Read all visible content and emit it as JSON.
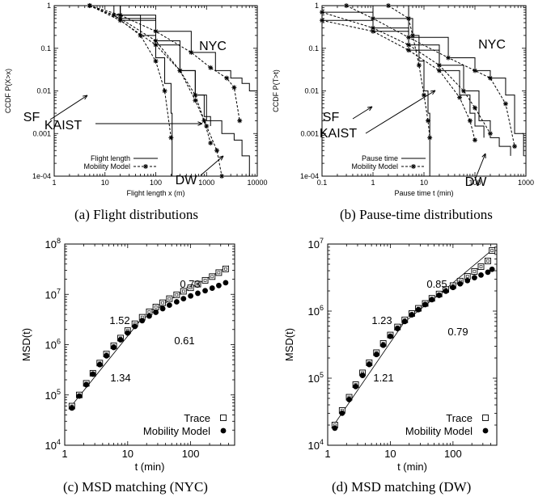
{
  "chart_data": [
    {
      "id": "a",
      "type": "line",
      "caption": "(a)  Flight distributions",
      "xlabel": "Flight length x (m)",
      "ylabel": "CCDF P(X>x)",
      "xscale": "log",
      "yscale": "log",
      "xlim": [
        1,
        10000
      ],
      "ylim": [
        0.0001,
        1
      ],
      "xticks": [
        "1",
        "10",
        "100",
        "1000",
        "10000"
      ],
      "yticks": [
        "1e-04",
        "0.001",
        "0.01",
        "0.1",
        "1"
      ],
      "legend": {
        "position": "bottom-left",
        "entries": [
          "Flight length",
          "Mobility Model"
        ]
      },
      "annotations": [
        "NYC",
        "SF",
        "KAIST",
        "DW"
      ],
      "series": [
        {
          "label": "NYC",
          "style": "trace",
          "points": [
            [
              5,
              1
            ],
            [
              20,
              0.6
            ],
            [
              100,
              0.25
            ],
            [
              500,
              0.08
            ],
            [
              1500,
              0.03
            ],
            [
              3000,
              0.02
            ],
            [
              5000,
              0.015
            ],
            [
              7000,
              0.01
            ],
            [
              10000,
              0.005
            ]
          ]
        },
        {
          "label": "NYC",
          "style": "model",
          "points": [
            [
              5,
              1
            ],
            [
              20,
              0.6
            ],
            [
              100,
              0.25
            ],
            [
              500,
              0.08
            ],
            [
              1200,
              0.035
            ],
            [
              2500,
              0.02
            ],
            [
              3500,
              0.012
            ],
            [
              4500,
              0.002
            ]
          ]
        },
        {
          "label": "DW",
          "style": "trace",
          "points": [
            [
              5,
              1
            ],
            [
              20,
              0.5
            ],
            [
              100,
              0.15
            ],
            [
              300,
              0.03
            ],
            [
              600,
              0.008
            ],
            [
              1000,
              0.002
            ],
            [
              2000,
              0.001
            ],
            [
              3500,
              0.0007
            ],
            [
              5000,
              0.0003
            ],
            [
              7000,
              0.0001
            ]
          ]
        },
        {
          "label": "DW",
          "style": "model",
          "points": [
            [
              5,
              1
            ],
            [
              20,
              0.5
            ],
            [
              100,
              0.15
            ],
            [
              300,
              0.03
            ],
            [
              600,
              0.006
            ],
            [
              1000,
              0.0015
            ],
            [
              1600,
              0.0004
            ],
            [
              2000,
              0.0001
            ]
          ]
        },
        {
          "label": "KAIST",
          "style": "trace",
          "points": [
            [
              5,
              1
            ],
            [
              20,
              0.45
            ],
            [
              100,
              0.12
            ],
            [
              300,
              0.03
            ],
            [
              600,
              0.008
            ],
            [
              900,
              0.0025
            ],
            [
              1200,
              0.0015
            ]
          ]
        },
        {
          "label": "KAIST",
          "style": "model",
          "points": [
            [
              5,
              1
            ],
            [
              20,
              0.45
            ],
            [
              100,
              0.12
            ],
            [
              300,
              0.03
            ],
            [
              600,
              0.008
            ],
            [
              900,
              0.002
            ],
            [
              1200,
              0.0006
            ]
          ]
        },
        {
          "label": "SF",
          "style": "trace",
          "points": [
            [
              5,
              1
            ],
            [
              15,
              0.6
            ],
            [
              50,
              0.2
            ],
            [
              100,
              0.06
            ],
            [
              150,
              0.015
            ],
            [
              200,
              0.003
            ],
            [
              210,
              0.0001
            ]
          ]
        },
        {
          "label": "SF",
          "style": "model",
          "points": [
            [
              5,
              1
            ],
            [
              15,
              0.6
            ],
            [
              50,
              0.2
            ],
            [
              100,
              0.05
            ],
            [
              150,
              0.01
            ],
            [
              200,
              0.0008
            ]
          ]
        }
      ]
    },
    {
      "id": "b",
      "type": "line",
      "caption": "(b)  Pause-time distributions",
      "xlabel": "Pause time t (min)",
      "ylabel": "CCDF P(T>t)",
      "xscale": "log",
      "yscale": "log",
      "xlim": [
        0.1,
        1000
      ],
      "ylim": [
        0.0001,
        1
      ],
      "xticks": [
        "0.1",
        "1",
        "10",
        "100",
        "1000"
      ],
      "yticks": [
        "1e-04",
        "0.001",
        "0.01",
        "0.1",
        "1"
      ],
      "legend": {
        "position": "bottom-left",
        "entries": [
          "Pause time",
          "Mobility Model"
        ]
      },
      "annotations": [
        "NYC",
        "SF",
        "KAIST",
        "DW"
      ],
      "series": [
        {
          "label": "NYC",
          "style": "trace",
          "points": [
            [
              0.3,
              1
            ],
            [
              1,
              0.5
            ],
            [
              5,
              0.18
            ],
            [
              30,
              0.06
            ],
            [
              100,
              0.03
            ],
            [
              200,
              0.02
            ],
            [
              400,
              0.008
            ],
            [
              600,
              0.001
            ],
            [
              900,
              0.0003
            ]
          ]
        },
        {
          "label": "NYC",
          "style": "model",
          "points": [
            [
              0.3,
              1
            ],
            [
              1,
              0.5
            ],
            [
              5,
              0.18
            ],
            [
              30,
              0.06
            ],
            [
              100,
              0.03
            ],
            [
              200,
              0.02
            ],
            [
              400,
              0.005
            ],
            [
              600,
              0.0005
            ]
          ]
        },
        {
          "label": "DW",
          "style": "trace",
          "points": [
            [
              0.1,
              0.7
            ],
            [
              1,
              0.3
            ],
            [
              5,
              0.12
            ],
            [
              20,
              0.04
            ],
            [
              60,
              0.01
            ],
            [
              120,
              0.002
            ],
            [
              200,
              0.0008
            ],
            [
              300,
              0.0005
            ],
            [
              500,
              0.0003
            ]
          ]
        },
        {
          "label": "DW",
          "style": "model",
          "points": [
            [
              0.1,
              0.7
            ],
            [
              1,
              0.3
            ],
            [
              5,
              0.12
            ],
            [
              20,
              0.04
            ],
            [
              60,
              0.01
            ],
            [
              100,
              0.004
            ],
            [
              200,
              0.001
            ]
          ]
        },
        {
          "label": "KAIST",
          "style": "trace",
          "points": [
            [
              0.1,
              0.45
            ],
            [
              1,
              0.25
            ],
            [
              5,
              0.09
            ],
            [
              20,
              0.03
            ],
            [
              50,
              0.008
            ],
            [
              80,
              0.003
            ],
            [
              100,
              0.0015
            ],
            [
              150,
              0.0008
            ]
          ]
        },
        {
          "label": "KAIST",
          "style": "model",
          "points": [
            [
              0.1,
              0.45
            ],
            [
              1,
              0.25
            ],
            [
              5,
              0.09
            ],
            [
              20,
              0.03
            ],
            [
              50,
              0.007
            ],
            [
              80,
              0.002
            ],
            [
              100,
              0.0007
            ]
          ]
        },
        {
          "label": "SF",
          "style": "trace",
          "points": [
            [
              2,
              1
            ],
            [
              5,
              0.5
            ],
            [
              6,
              0.2
            ],
            [
              8,
              0.05
            ],
            [
              10,
              0.01
            ],
            [
              12,
              0.003
            ],
            [
              13,
              0.0001
            ]
          ]
        },
        {
          "label": "SF",
          "style": "model",
          "points": [
            [
              2,
              1
            ],
            [
              5,
              0.5
            ],
            [
              6,
              0.2
            ],
            [
              8,
              0.04
            ],
            [
              10,
              0.008
            ],
            [
              12,
              0.002
            ],
            [
              13,
              0.0008
            ]
          ]
        }
      ]
    },
    {
      "id": "c",
      "type": "scatter",
      "caption": "(c)  MSD matching (NYC)",
      "xlabel": "t (min)",
      "ylabel": "MSD(t)",
      "xscale": "log",
      "yscale": "log",
      "xlim": [
        1,
        500
      ],
      "ylim": [
        10000,
        100000000
      ],
      "xticks": [
        "1",
        "10",
        "100"
      ],
      "yticks": [
        "10^4",
        "10^5",
        "10^6",
        "10^7",
        "10^8"
      ],
      "legend": {
        "position": "bottom-right",
        "entries": [
          "Trace",
          "Mobility Model"
        ]
      },
      "slope_labels": [
        "0.73",
        "1.52",
        "0.61",
        "1.34"
      ],
      "series": [
        {
          "name": "Trace",
          "x": [
            1.3,
            1.7,
            2.2,
            2.8,
            3.6,
            4.6,
            6,
            7.7,
            10,
            13,
            17,
            22,
            28,
            36,
            46,
            60,
            77,
            100,
            130,
            170,
            220,
            280,
            360
          ],
          "y": [
            60000,
            100000,
            170000,
            270000,
            430000,
            650000,
            950000,
            1350000,
            1900000,
            2600000,
            3500000,
            4500000,
            5600000,
            6800000,
            8200000,
            9800000,
            11500000,
            13500000,
            16000000,
            19000000,
            22500000,
            27000000,
            32000000
          ]
        },
        {
          "name": "Mobility Model",
          "x": [
            1.3,
            1.7,
            2.2,
            2.8,
            3.6,
            4.6,
            6,
            7.7,
            10,
            13,
            17,
            22,
            28,
            36,
            46,
            60,
            77,
            100,
            130,
            170,
            220,
            280,
            360
          ],
          "y": [
            55000,
            95000,
            160000,
            260000,
            400000,
            600000,
            880000,
            1250000,
            1700000,
            2300000,
            3000000,
            3700000,
            4400000,
            5200000,
            6100000,
            7100000,
            8200000,
            9300000,
            10500000,
            11800000,
            13300000,
            15000000,
            17000000
          ]
        }
      ]
    },
    {
      "id": "d",
      "type": "scatter",
      "caption": "(d)  MSD matching (DW)",
      "xlabel": "t (min)",
      "ylabel": "MSD(t)",
      "xscale": "log",
      "yscale": "log",
      "xlim": [
        1,
        500
      ],
      "ylim": [
        10000,
        10000000
      ],
      "xticks": [
        "1",
        "10",
        "100"
      ],
      "yticks": [
        "10^4",
        "10^5",
        "10^6",
        "10^7"
      ],
      "legend": {
        "position": "bottom-right",
        "entries": [
          "Trace",
          "Mobility Model"
        ]
      },
      "slope_labels": [
        "0.85",
        "1.23",
        "0.79",
        "1.21"
      ],
      "series": [
        {
          "name": "Trace",
          "x": [
            1.3,
            1.7,
            2.2,
            2.8,
            3.6,
            4.6,
            6,
            7.7,
            10,
            13,
            17,
            22,
            28,
            36,
            46,
            60,
            77,
            100,
            130,
            170,
            220,
            280,
            360,
            420
          ],
          "y": [
            20000,
            33000,
            52000,
            80000,
            120000,
            170000,
            240000,
            330000,
            440000,
            580000,
            740000,
            920000,
            1100000,
            1300000,
            1550000,
            1800000,
            2100000,
            2400000,
            2800000,
            3300000,
            3900000,
            4600000,
            5600000,
            8000000
          ]
        },
        {
          "name": "Mobility Model",
          "x": [
            1.3,
            1.7,
            2.2,
            2.8,
            3.6,
            4.6,
            6,
            7.7,
            10,
            13,
            17,
            22,
            28,
            36,
            46,
            60,
            77,
            100,
            130,
            170,
            220,
            280,
            360,
            420
          ],
          "y": [
            18000,
            30000,
            48000,
            75000,
            110000,
            160000,
            225000,
            310000,
            420000,
            550000,
            700000,
            880000,
            1050000,
            1250000,
            1480000,
            1720000,
            1980000,
            2250000,
            2550000,
            2850000,
            3150000,
            3450000,
            3800000,
            4200000
          ]
        }
      ]
    }
  ]
}
